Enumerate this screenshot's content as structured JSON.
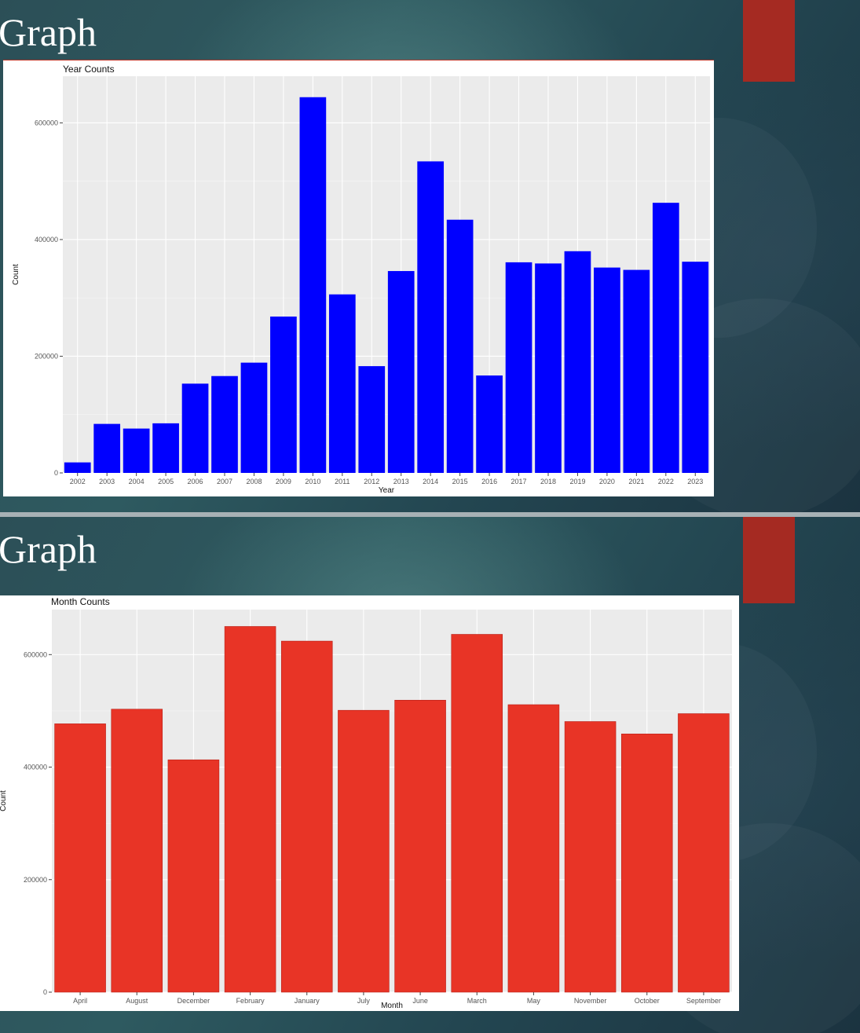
{
  "slides": [
    {
      "title": "Graph"
    },
    {
      "title": "Graph"
    }
  ],
  "charts": [
    {
      "type": "bar",
      "title": "Year Counts",
      "xlabel": "Year",
      "ylabel": "Count",
      "color": "#0000ff",
      "ylim": [
        0,
        680000
      ],
      "yticks": [
        0,
        200000,
        400000,
        600000
      ],
      "ytick_labels": [
        "0",
        "200000",
        "400000",
        "600000"
      ],
      "categories": [
        "2002",
        "2003",
        "2004",
        "2005",
        "2006",
        "2007",
        "2008",
        "2009",
        "2010",
        "2011",
        "2012",
        "2013",
        "2014",
        "2015",
        "2016",
        "2017",
        "2018",
        "2019",
        "2020",
        "2021",
        "2022",
        "2023"
      ],
      "values": [
        18000,
        84000,
        76000,
        85000,
        153000,
        166000,
        189000,
        268000,
        644000,
        306000,
        183000,
        346000,
        534000,
        434000,
        167000,
        361000,
        359000,
        380000,
        352000,
        348000,
        463000,
        362000
      ]
    },
    {
      "type": "bar",
      "title": "Month Counts",
      "xlabel": "Month",
      "ylabel": "Count",
      "color": "#e83426",
      "ylim": [
        0,
        680000
      ],
      "yticks": [
        0,
        200000,
        400000,
        600000
      ],
      "ytick_labels": [
        "0",
        "200000",
        "400000",
        "600000"
      ],
      "categories": [
        "April",
        "August",
        "December",
        "February",
        "January",
        "July",
        "June",
        "March",
        "May",
        "November",
        "October",
        "September"
      ],
      "values": [
        477000,
        503000,
        413000,
        650000,
        624000,
        501000,
        519000,
        636000,
        511000,
        481000,
        459000,
        495000
      ]
    }
  ],
  "chart_data": [
    {
      "type": "bar",
      "title": "Year Counts",
      "xlabel": "Year",
      "ylabel": "Count",
      "categories": [
        "2002",
        "2003",
        "2004",
        "2005",
        "2006",
        "2007",
        "2008",
        "2009",
        "2010",
        "2011",
        "2012",
        "2013",
        "2014",
        "2015",
        "2016",
        "2017",
        "2018",
        "2019",
        "2020",
        "2021",
        "2022",
        "2023"
      ],
      "values": [
        18000,
        84000,
        76000,
        85000,
        153000,
        166000,
        189000,
        268000,
        644000,
        306000,
        183000,
        346000,
        534000,
        434000,
        167000,
        361000,
        359000,
        380000,
        352000,
        348000,
        463000,
        362000
      ],
      "ylim": [
        0,
        680000
      ],
      "grid": true
    },
    {
      "type": "bar",
      "title": "Month Counts",
      "xlabel": "Month",
      "ylabel": "Count",
      "categories": [
        "April",
        "August",
        "December",
        "February",
        "January",
        "July",
        "June",
        "March",
        "May",
        "November",
        "October",
        "September"
      ],
      "values": [
        477000,
        503000,
        413000,
        650000,
        624000,
        501000,
        519000,
        636000,
        511000,
        481000,
        459000,
        495000
      ],
      "ylim": [
        0,
        680000
      ],
      "grid": true
    }
  ]
}
